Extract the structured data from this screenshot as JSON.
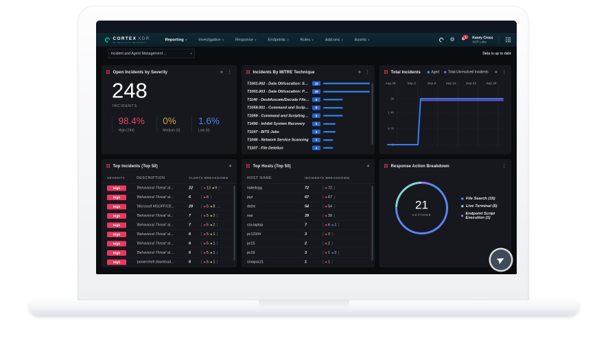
{
  "brand": {
    "name": "CORTEX",
    "product": "XDR",
    "tagline": "BY PALO ALTO NETWORKS"
  },
  "icons": {
    "caret": "▾",
    "kebab": "⋮"
  },
  "nav": {
    "menu": [
      {
        "label": "Reporting",
        "active": true
      },
      {
        "label": "Investigation",
        "active": false
      },
      {
        "label": "Response",
        "active": false
      },
      {
        "label": "Endpoints",
        "active": false
      },
      {
        "label": "Rules",
        "active": false
      },
      {
        "label": "Add-ons",
        "active": false
      },
      {
        "label": "Assets",
        "active": false
      }
    ],
    "notification_count": "1",
    "user": {
      "name": "Kasey Cross",
      "org": "XDR Labs"
    }
  },
  "toolbar": {
    "dashboard_selector": "Incident and Agent Management ...",
    "status": "Data is up to date"
  },
  "severity_colors": {
    "high": "#e8395f",
    "medium": "#d9a73f",
    "low": "#3f7de0"
  },
  "panels": {
    "open_incidents": {
      "title": "Open Incidents by Severity",
      "total": "248",
      "total_label": "INCIDENTS",
      "stats": [
        {
          "pct": "98.4%",
          "label": "High (244)",
          "color": "#e0445f"
        },
        {
          "pct": "0%",
          "label": "Medium (0)",
          "color": "#d4a43c"
        },
        {
          "pct": "1.6%",
          "label": "Low (4)",
          "color": "#4b87e0"
        }
      ]
    },
    "mitre": {
      "title": "Incidents By MITRE Technique",
      "chart_data": {
        "type": "bar",
        "orientation": "horizontal",
        "max": 19,
        "categories": [
          "T1001.002 - Data Obfuscation: Stegano...",
          "T1001.003 - Data Obfuscation: Protocol ...",
          "T1140 - Deobfuscate/Decode Files or Inf...",
          "T1059.001 - Command and Scripting Int...",
          "T1059 - Command and Scripting Interpr...",
          "T1490 - Inhibit System Recovery",
          "T1197 - BITS Jobs",
          "T1046 - Network Service Scanning",
          "T1107 - File Deletion"
        ],
        "values": [
          19,
          19,
          8,
          8,
          8,
          5,
          5,
          4,
          4
        ],
        "bar_color": "#2f7ad9"
      }
    },
    "total_incidents": {
      "title": "Total Incidents",
      "legend": [
        {
          "label": "Aged",
          "color": "#3f8cfa"
        },
        {
          "label": "Total Unresolved Incidents",
          "color": "#8a5cf0"
        }
      ],
      "chart_data": {
        "type": "line",
        "xticks": [
          "Aug 28",
          "Sep 2",
          "Sep 8",
          "Sep 16",
          "Sep 22",
          "Sep 29"
        ],
        "yticks": [
          {
            "label": "2k",
            "value": 2000
          },
          {
            "label": "1.4k",
            "value": 1400
          },
          {
            "label": "0.7k",
            "value": 700
          },
          {
            "label": "0",
            "value": 0
          }
        ],
        "ymax": 2000,
        "series": [
          {
            "name": "Total Unresolved Incidents",
            "color": "#8a5cf0",
            "width": 3,
            "points": [
              [
                0.285,
                1925
              ],
              [
                1,
                1925
              ]
            ]
          },
          {
            "name": "Aged",
            "color": "#3b7df0",
            "width": 4,
            "points": [
              [
                0,
                0
              ],
              [
                0.262,
                0
              ],
              [
                0.285,
                2000
              ],
              [
                1,
                2000
              ]
            ]
          }
        ]
      }
    },
    "top_incidents": {
      "title": "Top Incidents (Top 50)",
      "columns": [
        "SEVERITY",
        "DESCRIPTION",
        "ALERTS BREAKDOWN"
      ],
      "rows": [
        {
          "severity": "High",
          "description": "'Behavioral Threat' al...",
          "count": "22",
          "breakdown": [
            {
              "value": "13",
              "level": "high"
            },
            {
              "value": "9",
              "level": "medium"
            }
          ],
          "truncated": false
        },
        {
          "severity": "High",
          "description": "'Behavioral Threat' al...",
          "count": "6",
          "breakdown": [
            {
              "value": "6",
              "level": "high"
            }
          ],
          "truncated": false
        },
        {
          "severity": "High",
          "description": "'Microsoft MSOFFICE...",
          "count": "29",
          "breakdown": [
            {
              "value": "5",
              "level": "high"
            },
            {
              "value": "8",
              "level": "medium"
            }
          ],
          "truncated": true
        },
        {
          "severity": "High",
          "description": "'Behavioral Threat' al...",
          "count": "7",
          "breakdown": [
            {
              "value": "5",
              "level": "high"
            },
            {
              "value": "2",
              "level": "medium"
            }
          ],
          "truncated": false
        },
        {
          "severity": "High",
          "description": "'Behavioral Threat' al...",
          "count": "7",
          "breakdown": [
            {
              "value": "5",
              "level": "high"
            },
            {
              "value": "2",
              "level": "medium"
            }
          ],
          "truncated": false
        },
        {
          "severity": "High",
          "description": "'Behavioral Threat' al...",
          "count": "6",
          "breakdown": [
            {
              "value": "5",
              "level": "high"
            },
            {
              "value": "1",
              "level": "medium"
            }
          ],
          "truncated": false
        },
        {
          "severity": "High",
          "description": "'Behavioral Threat' al...",
          "count": "6",
          "breakdown": [
            {
              "value": "5",
              "level": "high"
            },
            {
              "value": "1",
              "level": "medium"
            }
          ],
          "truncated": false
        },
        {
          "severity": "High",
          "description": "'Behavioral Threat' al...",
          "count": "6",
          "breakdown": [
            {
              "value": "5",
              "level": "high"
            },
            {
              "value": "1",
              "level": "medium"
            }
          ],
          "truncated": false
        },
        {
          "severity": "High",
          "description": "'powershell download...",
          "count": "6",
          "breakdown": [
            {
              "value": "5",
              "level": "high"
            },
            {
              "value": "1",
              "level": "medium"
            }
          ],
          "truncated": false
        }
      ]
    },
    "top_hosts": {
      "title": "Top Hosts (Top 50)",
      "columns": [
        "HOST NAME",
        "INCIDENTS BREAKDOWN"
      ],
      "rows": [
        {
          "host": "natedogg",
          "count": "72",
          "breakdown": [
            {
              "value": "72",
              "level": "high"
            }
          ]
        },
        {
          "host": "jayr",
          "count": "67",
          "breakdown": [
            {
              "value": "67",
              "level": "high"
            }
          ]
        },
        {
          "host": "drdre",
          "count": "54",
          "breakdown": [
            {
              "value": "54",
              "level": "high"
            }
          ]
        },
        {
          "host": "nas",
          "count": "39",
          "breakdown": [
            {
              "value": "39",
              "level": "high"
            }
          ]
        },
        {
          "host": "rza-laptop",
          "count": "7",
          "breakdown": [
            {
              "value": "6",
              "level": "high"
            },
            {
              "value": "1",
              "level": "low"
            }
          ]
        },
        {
          "host": "pc12344",
          "count": "3",
          "breakdown": [
            {
              "value": "3",
              "level": "high"
            }
          ]
        },
        {
          "host": "pc15",
          "count": "2",
          "breakdown": [
            {
              "value": "2",
              "level": "high"
            }
          ]
        },
        {
          "host": "pc16",
          "count": "3",
          "breakdown": [
            {
              "value": "1",
              "level": "high"
            },
            {
              "value": "2",
              "level": "low"
            }
          ]
        },
        {
          "host": "srvapac21",
          "count": "1",
          "breakdown": [
            {
              "value": "1",
              "level": "high"
            }
          ]
        }
      ]
    },
    "response_actions": {
      "title": "Response Action Breakdown",
      "center_value": "21",
      "center_label": "ACTIONS",
      "chart_data": {
        "type": "donut",
        "total": 21,
        "segments": [
          {
            "label": "File Search (15)",
            "value": 15,
            "color": "#5b86f5"
          },
          {
            "label": "Live Terminal (5)",
            "value": 5,
            "color": "#7fd8d2"
          },
          {
            "label": "Endpoint Script Execution (1)",
            "value": 1,
            "color": "#a96cf5"
          }
        ]
      }
    }
  }
}
